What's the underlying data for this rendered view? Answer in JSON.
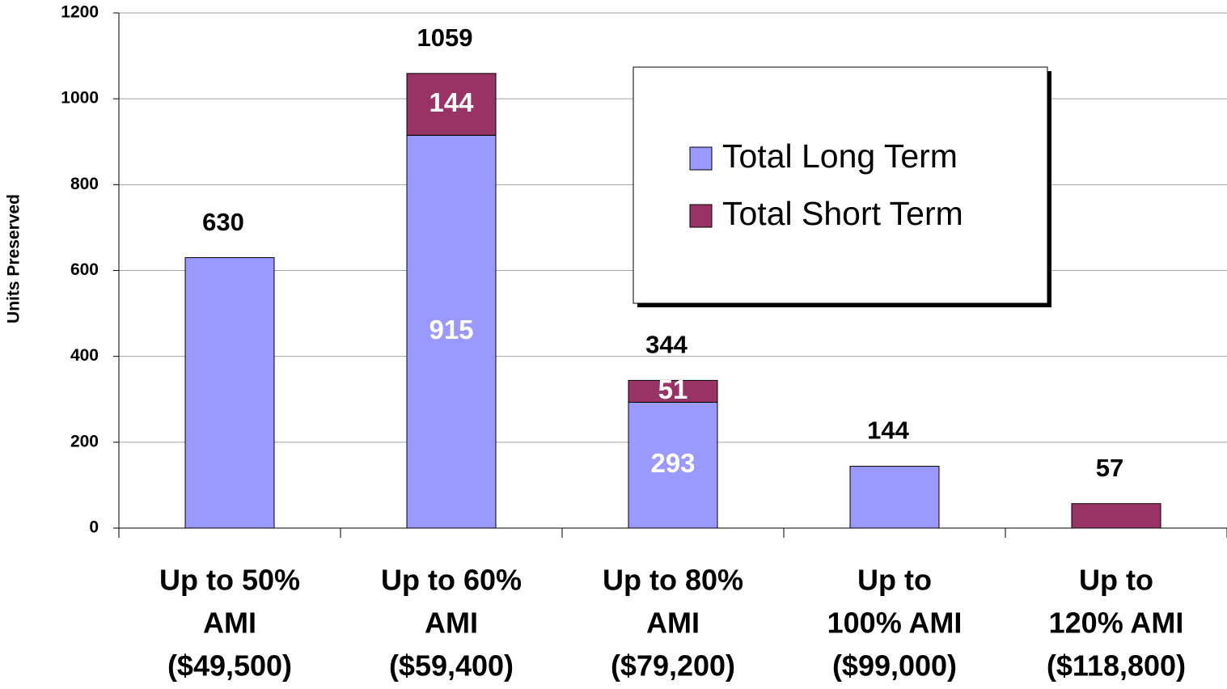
{
  "chart_data": {
    "type": "stacked_bar",
    "y_label": "Units Preserved",
    "categories": [
      [
        "Up to 50%",
        "AMI",
        "($49,500)"
      ],
      [
        "Up to 60%",
        "AMI",
        "($59,400)"
      ],
      [
        "Up to 80%",
        "AMI",
        "($79,200)"
      ],
      [
        "Up to",
        "100% AMI",
        "($99,000)"
      ],
      [
        "Up to",
        "120% AMI",
        "($118,800)"
      ]
    ],
    "series": [
      {
        "name": "Total Long Term",
        "color": "#9999ff",
        "values": [
          630,
          915,
          293,
          144,
          null
        ]
      },
      {
        "name": "Total Short Term",
        "color": "#993366",
        "values": [
          null,
          144,
          51,
          null,
          57
        ]
      }
    ],
    "totals": [
      630,
      1059,
      344,
      144,
      57
    ],
    "ylim": [
      0,
      1200
    ],
    "yticks": [
      0,
      200,
      400,
      600,
      800,
      1000,
      1200
    ],
    "grid": true,
    "legend": "upper right"
  }
}
